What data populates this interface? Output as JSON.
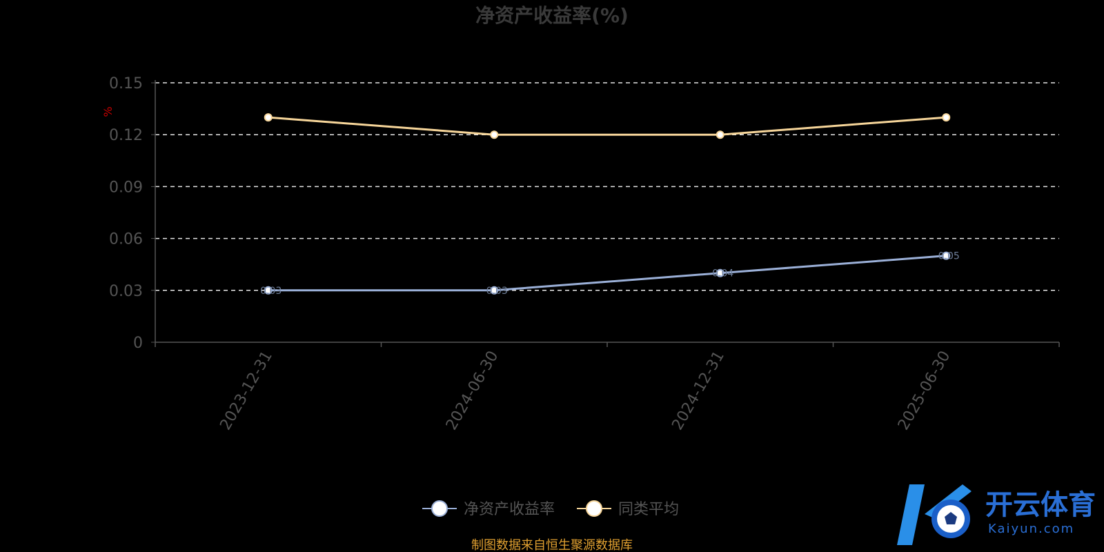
{
  "chart_data": {
    "type": "line",
    "title": "净资产收益率(%)",
    "ylabel": "%",
    "xlabel": "",
    "categories": [
      "2023-12-31",
      "2024-06-30",
      "2024-12-31",
      "2025-06-30"
    ],
    "ylim": [
      0,
      0.15
    ],
    "yticks": [
      "0",
      "0.03",
      "0.06",
      "0.09",
      "0.12",
      "0.15"
    ],
    "grid": true,
    "legend_position": "bottom-center",
    "series": [
      {
        "name": "净资产收益率",
        "values": [
          0.03,
          0.03,
          0.04,
          0.05
        ],
        "color": "#9bb0d8",
        "labels": [
          "0.03",
          "0.03",
          "0.04",
          "0.05"
        ]
      },
      {
        "name": "同类平均",
        "values": [
          0.13,
          0.12,
          0.12,
          0.13
        ],
        "color": "#f7d69a"
      }
    ]
  },
  "source_note": "制图数据来自恒生聚源数据库",
  "watermark": {
    "text": "开云体育",
    "sub": "Kaiyun.com",
    "logo_icon": "k-soccer-ball-logo-icon"
  }
}
